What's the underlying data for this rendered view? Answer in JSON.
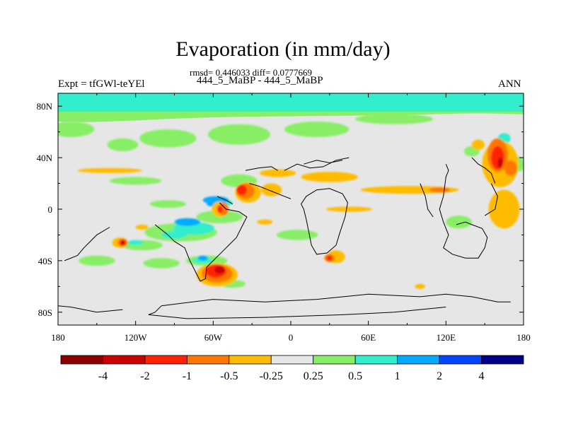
{
  "chart_data": {
    "type": "heatmap",
    "title": "Evaporation (in mm/day)",
    "stats": "rmsd= 0.446033 diff= 0.0777669",
    "left_label": "Expt = tfGWl-teYEl",
    "center_label": "444_5_MaBP - 444_5_MaBP",
    "right_label": "ANN",
    "x_range": [
      -180,
      180
    ],
    "y_range": [
      -90,
      90
    ],
    "x_ticks": [
      {
        "value": -180,
        "label": "180"
      },
      {
        "value": -120,
        "label": "120W"
      },
      {
        "value": -60,
        "label": "60W"
      },
      {
        "value": 0,
        "label": "0"
      },
      {
        "value": 60,
        "label": "60E"
      },
      {
        "value": 120,
        "label": "120E"
      },
      {
        "value": 180,
        "label": "180"
      }
    ],
    "y_ticks": [
      {
        "value": 80,
        "label": "80N"
      },
      {
        "value": 40,
        "label": "40N"
      },
      {
        "value": 0,
        "label": "0"
      },
      {
        "value": -40,
        "label": "40S"
      },
      {
        "value": -80,
        "label": "80S"
      }
    ],
    "colorbar": {
      "colors": [
        "#8c0000",
        "#cc0000",
        "#ff2200",
        "#ff7700",
        "#ffbb00",
        "#e6e6e6",
        "#88ee66",
        "#33eecc",
        "#00aaff",
        "#0044ff",
        "#000088"
      ],
      "labels": [
        "-4",
        "-2",
        "-1",
        "-0.5",
        "-0.25",
        "0.25",
        "0.5",
        "1",
        "2",
        "4"
      ]
    },
    "regions": [
      {
        "class": 6,
        "lon": -170,
        "lat": 62,
        "rx": 18,
        "ry": 6
      },
      {
        "class": 6,
        "lon": -130,
        "lat": 50,
        "rx": 12,
        "ry": 5
      },
      {
        "class": 6,
        "lon": -95,
        "lat": 55,
        "rx": 22,
        "ry": 7
      },
      {
        "class": 6,
        "lon": -40,
        "lat": 58,
        "rx": 24,
        "ry": 8
      },
      {
        "class": 6,
        "lon": 20,
        "lat": 62,
        "rx": 25,
        "ry": 6
      },
      {
        "class": 6,
        "lon": 80,
        "lat": 70,
        "rx": 30,
        "ry": 4
      },
      {
        "class": 6,
        "lon": -120,
        "lat": 22,
        "rx": 20,
        "ry": 3
      },
      {
        "class": 6,
        "lon": -95,
        "lat": 4,
        "rx": 14,
        "ry": 3
      },
      {
        "class": 6,
        "lon": -55,
        "lat": -6,
        "rx": 18,
        "ry": 5
      },
      {
        "class": 6,
        "lon": -40,
        "lat": 22,
        "rx": 14,
        "ry": 5
      },
      {
        "class": 6,
        "lon": -85,
        "lat": -18,
        "rx": 28,
        "ry": 7
      },
      {
        "class": 6,
        "lon": -115,
        "lat": -28,
        "rx": 16,
        "ry": 4
      },
      {
        "class": 6,
        "lon": -100,
        "lat": -42,
        "rx": 14,
        "ry": 4
      },
      {
        "class": 6,
        "lon": -65,
        "lat": -40,
        "rx": 16,
        "ry": 4
      },
      {
        "class": 6,
        "lon": -150,
        "lat": -40,
        "rx": 14,
        "ry": 4
      },
      {
        "class": 6,
        "lon": -45,
        "lat": -58,
        "rx": 10,
        "ry": 3
      },
      {
        "class": 6,
        "lon": 5,
        "lat": -20,
        "rx": 16,
        "ry": 4
      },
      {
        "class": 6,
        "lon": 130,
        "lat": -10,
        "rx": 10,
        "ry": 5
      },
      {
        "class": 6,
        "lon": 140,
        "lat": 45,
        "rx": 6,
        "ry": 4
      },
      {
        "class": 6,
        "lon": 175,
        "lat": 35,
        "rx": 6,
        "ry": 6
      },
      {
        "class": 7,
        "lon": -75,
        "lat": -15,
        "rx": 16,
        "ry": 5
      },
      {
        "class": 7,
        "lon": -120,
        "lat": -26,
        "rx": 6,
        "ry": 2
      },
      {
        "class": 7,
        "lon": -68,
        "lat": -40,
        "rx": 8,
        "ry": 2
      },
      {
        "class": 7,
        "lon": -55,
        "lat": 5,
        "rx": 10,
        "ry": 3
      },
      {
        "class": 7,
        "lon": -90,
        "lat": -20,
        "rx": 10,
        "ry": 3
      },
      {
        "class": 7,
        "lon": 165,
        "lat": 55,
        "rx": 5,
        "ry": 4
      },
      {
        "class": 8,
        "lon": -58,
        "lat": 7,
        "rx": 10,
        "ry": 3
      },
      {
        "class": 8,
        "lon": -80,
        "lat": -10,
        "rx": 10,
        "ry": 3
      },
      {
        "class": 8,
        "lon": -68,
        "lat": -38,
        "rx": 4,
        "ry": 2
      },
      {
        "class": 8,
        "lon": 170,
        "lat": 38,
        "rx": 4,
        "ry": 6
      },
      {
        "class": 8,
        "lon": -60,
        "lat": 4,
        "rx": 5,
        "ry": 2
      },
      {
        "class": 9,
        "lon": 172,
        "lat": 38,
        "rx": 2,
        "ry": 3
      },
      {
        "class": 4,
        "lon": -55,
        "lat": 0,
        "rx": 6,
        "ry": 6
      },
      {
        "class": 4,
        "lon": -33,
        "lat": 13,
        "rx": 10,
        "ry": 8
      },
      {
        "class": 4,
        "lon": -15,
        "lat": 15,
        "rx": 8,
        "ry": 5
      },
      {
        "class": 4,
        "lon": -10,
        "lat": 28,
        "rx": 14,
        "ry": 3
      },
      {
        "class": 4,
        "lon": 30,
        "lat": 25,
        "rx": 22,
        "ry": 4
      },
      {
        "class": 4,
        "lon": 92,
        "lat": 15,
        "rx": 38,
        "ry": 3
      },
      {
        "class": 4,
        "lon": 162,
        "lat": 35,
        "rx": 14,
        "ry": 18
      },
      {
        "class": 4,
        "lon": 145,
        "lat": 50,
        "rx": 5,
        "ry": 4
      },
      {
        "class": 4,
        "lon": -57,
        "lat": -51,
        "rx": 16,
        "ry": 9
      },
      {
        "class": 4,
        "lon": -132,
        "lat": -26,
        "rx": 6,
        "ry": 4
      },
      {
        "class": 4,
        "lon": 35,
        "lat": -37,
        "rx": 7,
        "ry": 5
      },
      {
        "class": 4,
        "lon": 165,
        "lat": 0,
        "rx": 12,
        "ry": 15
      },
      {
        "class": 4,
        "lon": -140,
        "lat": 30,
        "rx": 25,
        "ry": 2
      },
      {
        "class": 4,
        "lon": 45,
        "lat": 0,
        "rx": 18,
        "ry": 2
      },
      {
        "class": 4,
        "lon": -20,
        "lat": -10,
        "rx": 6,
        "ry": 2
      },
      {
        "class": 4,
        "lon": 100,
        "lat": -60,
        "rx": 4,
        "ry": 2
      },
      {
        "class": 4,
        "lon": -115,
        "lat": -14,
        "rx": 5,
        "ry": 2
      },
      {
        "class": 3,
        "lon": -57,
        "lat": -50,
        "rx": 12,
        "ry": 7
      },
      {
        "class": 3,
        "lon": -35,
        "lat": 14,
        "rx": 7,
        "ry": 6
      },
      {
        "class": 3,
        "lon": -52,
        "lat": 0,
        "rx": 4,
        "ry": 5
      },
      {
        "class": 3,
        "lon": 160,
        "lat": 42,
        "rx": 8,
        "ry": 13
      },
      {
        "class": 3,
        "lon": 170,
        "lat": 32,
        "rx": 5,
        "ry": 6
      },
      {
        "class": 3,
        "lon": 30,
        "lat": -38,
        "rx": 4,
        "ry": 3
      },
      {
        "class": 3,
        "lon": -130,
        "lat": -26,
        "rx": 4,
        "ry": 3
      },
      {
        "class": 3,
        "lon": 115,
        "lat": 15,
        "rx": 8,
        "ry": 2
      },
      {
        "class": 2,
        "lon": -58,
        "lat": -48,
        "rx": 8,
        "ry": 5
      },
      {
        "class": 2,
        "lon": -38,
        "lat": 15,
        "rx": 4,
        "ry": 4
      },
      {
        "class": 2,
        "lon": 160,
        "lat": 40,
        "rx": 5,
        "ry": 9
      },
      {
        "class": 2,
        "lon": 30,
        "lat": -38,
        "rx": 2,
        "ry": 2
      },
      {
        "class": 2,
        "lon": -55,
        "lat": 0,
        "rx": 2,
        "ry": 3
      },
      {
        "class": 1,
        "lon": -55,
        "lat": -47,
        "rx": 4,
        "ry": 3
      },
      {
        "class": 1,
        "lon": 162,
        "lat": 36,
        "rx": 2,
        "ry": 4
      },
      {
        "class": 1,
        "lon": -130,
        "lat": -26,
        "rx": 2,
        "ry": 2
      }
    ],
    "coastlines": [
      [
        [
          -105,
          -12
        ],
        [
          -95,
          -20
        ],
        [
          -90,
          -25
        ],
        [
          -82,
          -30
        ],
        [
          -78,
          -40
        ],
        [
          -73,
          -50
        ],
        [
          -70,
          -56
        ]
      ],
      [
        [
          -70,
          -56
        ],
        [
          -66,
          -54
        ],
        [
          -65,
          -45
        ],
        [
          -60,
          -40
        ],
        [
          -52,
          -32
        ],
        [
          -48,
          -28
        ],
        [
          -42,
          -22
        ],
        [
          -38,
          -14
        ],
        [
          -34,
          -6
        ],
        [
          -40,
          -2
        ],
        [
          -50,
          0
        ],
        [
          -55,
          5
        ]
      ],
      [
        [
          -57,
          10
        ],
        [
          -50,
          7
        ],
        [
          -45,
          4
        ]
      ],
      [
        [
          -32,
          20
        ],
        [
          -25,
          18
        ],
        [
          -15,
          14
        ],
        [
          -5,
          10
        ],
        [
          0,
          8
        ]
      ],
      [
        [
          10,
          0
        ],
        [
          12,
          -8
        ],
        [
          14,
          -18
        ],
        [
          16,
          -28
        ],
        [
          20,
          -35
        ],
        [
          28,
          -34
        ],
        [
          35,
          -28
        ],
        [
          38,
          -18
        ],
        [
          42,
          -6
        ],
        [
          44,
          5
        ],
        [
          40,
          12
        ],
        [
          30,
          16
        ],
        [
          20,
          15
        ],
        [
          12,
          10
        ],
        [
          8,
          4
        ],
        [
          10,
          0
        ]
      ],
      [
        [
          -5,
          30
        ],
        [
          5,
          35
        ],
        [
          15,
          32
        ],
        [
          25,
          33
        ],
        [
          35,
          38
        ],
        [
          45,
          40
        ]
      ],
      [
        [
          -10,
          30
        ],
        [
          -15,
          33
        ],
        [
          -25,
          32
        ],
        [
          -35,
          30
        ]
      ],
      [
        [
          10,
          35
        ],
        [
          20,
          38
        ],
        [
          30,
          36
        ],
        [
          40,
          38
        ]
      ],
      [
        [
          120,
          35
        ],
        [
          122,
          30
        ],
        [
          120,
          25
        ],
        [
          118,
          10
        ],
        [
          115,
          0
        ],
        [
          118,
          -10
        ],
        [
          122,
          -20
        ],
        [
          118,
          -30
        ],
        [
          125,
          -35
        ],
        [
          135,
          -38
        ],
        [
          145,
          -38
        ],
        [
          150,
          -30
        ],
        [
          152,
          -22
        ],
        [
          148,
          -15
        ],
        [
          140,
          -12
        ],
        [
          135,
          -10
        ],
        [
          128,
          -12
        ]
      ],
      [
        [
          140,
          40
        ],
        [
          145,
          35
        ],
        [
          150,
          32
        ],
        [
          155,
          28
        ],
        [
          158,
          20
        ]
      ],
      [
        [
          155,
          20
        ],
        [
          160,
          10
        ],
        [
          158,
          0
        ],
        [
          150,
          -5
        ]
      ],
      [
        [
          100,
          20
        ],
        [
          104,
          10
        ],
        [
          106,
          0
        ],
        [
          110,
          -6
        ]
      ],
      [
        [
          -140,
          -14
        ],
        [
          -150,
          -20
        ],
        [
          -160,
          -30
        ],
        [
          -165,
          -36
        ],
        [
          -175,
          -40
        ]
      ],
      [
        [
          -100,
          -75
        ],
        [
          -60,
          -70
        ],
        [
          -20,
          -72
        ],
        [
          20,
          -70
        ],
        [
          60,
          -66
        ],
        [
          100,
          -68
        ],
        [
          120,
          -66
        ],
        [
          140,
          -68
        ],
        [
          160,
          -72
        ],
        [
          170,
          -72
        ]
      ],
      [
        [
          -100,
          -75
        ],
        [
          -105,
          -80
        ],
        [
          -110,
          -82
        ],
        [
          -80,
          -85
        ],
        [
          -20,
          -84
        ],
        [
          40,
          -82
        ],
        [
          80,
          -80
        ],
        [
          100,
          -78
        ],
        [
          120,
          -76
        ]
      ],
      [
        [
          -180,
          -75
        ],
        [
          -170,
          -76
        ],
        [
          -150,
          -80
        ],
        [
          -130,
          -78
        ]
      ]
    ]
  }
}
